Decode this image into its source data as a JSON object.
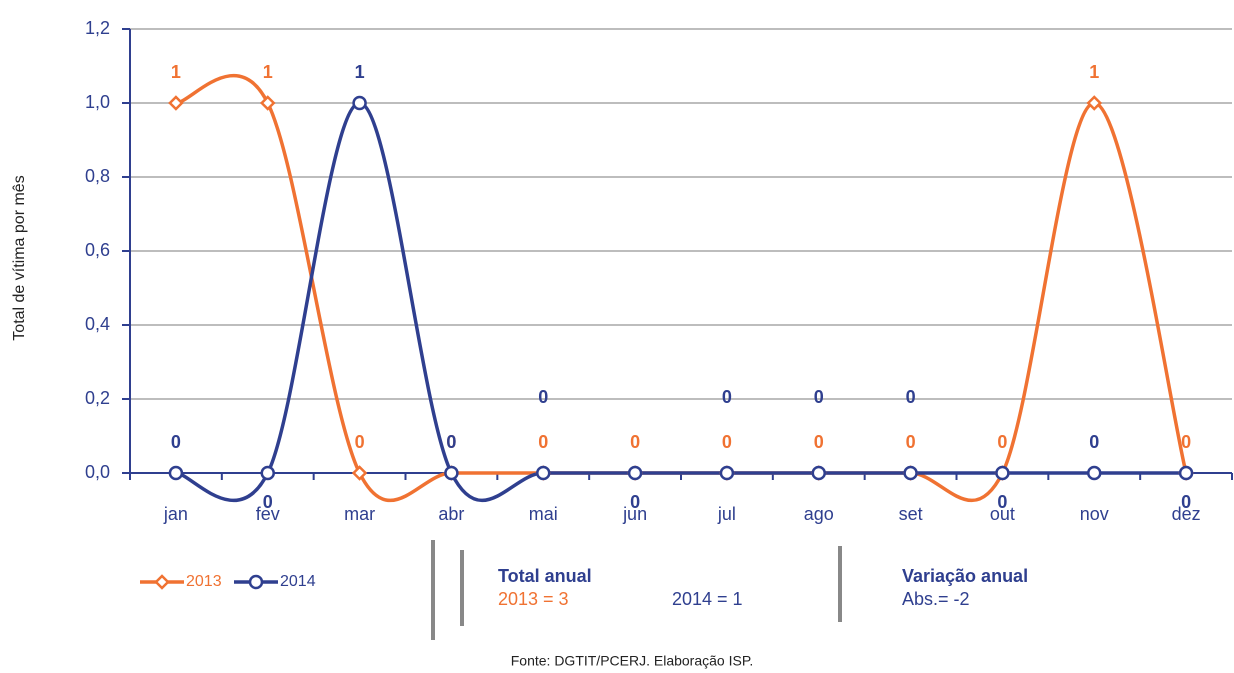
{
  "chart_data": {
    "type": "line",
    "y_label": "Total de vítima por mês",
    "categories": [
      "jan",
      "fev",
      "mar",
      "abr",
      "mai",
      "jun",
      "jul",
      "ago",
      "set",
      "out",
      "nov",
      "dez"
    ],
    "series": [
      {
        "name": "2013",
        "color": "#f07232",
        "marker": "diamond",
        "values": [
          1,
          1,
          0,
          0,
          0,
          0,
          0,
          0,
          0,
          0,
          1,
          0
        ]
      },
      {
        "name": "2014",
        "color": "#2f3f8f",
        "marker": "circle",
        "values": [
          0,
          0,
          1,
          0,
          0,
          0,
          0,
          0,
          0,
          0,
          0,
          0
        ]
      }
    ],
    "ylim": [
      0,
      1.2
    ],
    "yticks": [
      {
        "value": 0,
        "label": "0,0"
      },
      {
        "value": 0.2,
        "label": "0,2"
      },
      {
        "value": 0.4,
        "label": "0,4"
      },
      {
        "value": 0.6,
        "label": "0,6"
      },
      {
        "value": 0.8,
        "label": "0,8"
      },
      {
        "value": 1,
        "label": "1,0"
      },
      {
        "value": 1.2,
        "label": "1,2"
      }
    ],
    "grid": true,
    "smooth": true,
    "legend": "bottom-left",
    "annotations": {
      "total_title": "Total anual",
      "total_2013": "2013 = 3",
      "total_2014": "2014 = 1",
      "variation_title": "Variação anual",
      "variation_abs": "Abs.= -2",
      "source": "Fonte: DGTIT/PCERJ. Elaboração ISP."
    }
  }
}
